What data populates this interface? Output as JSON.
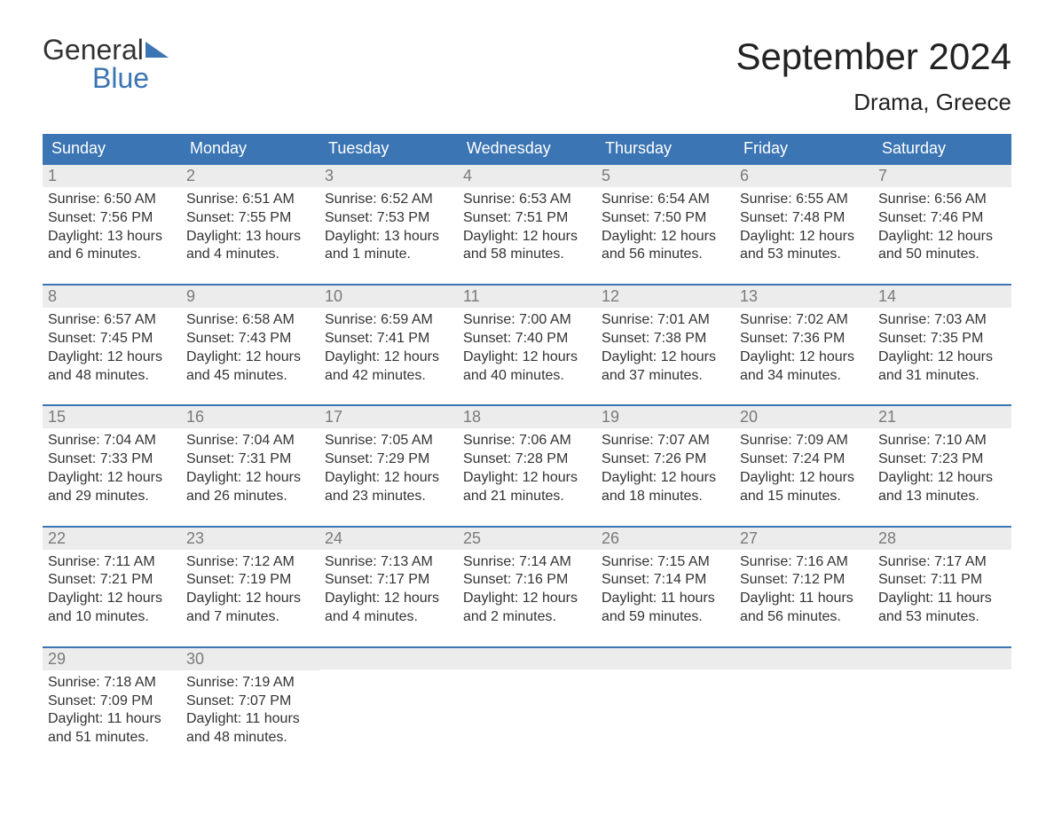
{
  "brand": {
    "line1": "General",
    "line2": "Blue"
  },
  "title": "September 2024",
  "location": "Drama, Greece",
  "colors": {
    "header_bg": "#3b75b3",
    "header_text": "#ffffff",
    "daynum_bg": "#ececec",
    "daynum_text": "#7a7a7a",
    "body_text": "#333333",
    "week_border": "#3b75b3",
    "brand_blue": "#3b75b3",
    "page_bg": "#ffffff"
  },
  "type": "calendar-table",
  "week_headers": [
    "Sunday",
    "Monday",
    "Tuesday",
    "Wednesday",
    "Thursday",
    "Friday",
    "Saturday"
  ],
  "days": [
    {
      "n": "1",
      "sunrise": "6:50 AM",
      "sunset": "7:56 PM",
      "daylight": "13 hours and 6 minutes."
    },
    {
      "n": "2",
      "sunrise": "6:51 AM",
      "sunset": "7:55 PM",
      "daylight": "13 hours and 4 minutes."
    },
    {
      "n": "3",
      "sunrise": "6:52 AM",
      "sunset": "7:53 PM",
      "daylight": "13 hours and 1 minute."
    },
    {
      "n": "4",
      "sunrise": "6:53 AM",
      "sunset": "7:51 PM",
      "daylight": "12 hours and 58 minutes."
    },
    {
      "n": "5",
      "sunrise": "6:54 AM",
      "sunset": "7:50 PM",
      "daylight": "12 hours and 56 minutes."
    },
    {
      "n": "6",
      "sunrise": "6:55 AM",
      "sunset": "7:48 PM",
      "daylight": "12 hours and 53 minutes."
    },
    {
      "n": "7",
      "sunrise": "6:56 AM",
      "sunset": "7:46 PM",
      "daylight": "12 hours and 50 minutes."
    },
    {
      "n": "8",
      "sunrise": "6:57 AM",
      "sunset": "7:45 PM",
      "daylight": "12 hours and 48 minutes."
    },
    {
      "n": "9",
      "sunrise": "6:58 AM",
      "sunset": "7:43 PM",
      "daylight": "12 hours and 45 minutes."
    },
    {
      "n": "10",
      "sunrise": "6:59 AM",
      "sunset": "7:41 PM",
      "daylight": "12 hours and 42 minutes."
    },
    {
      "n": "11",
      "sunrise": "7:00 AM",
      "sunset": "7:40 PM",
      "daylight": "12 hours and 40 minutes."
    },
    {
      "n": "12",
      "sunrise": "7:01 AM",
      "sunset": "7:38 PM",
      "daylight": "12 hours and 37 minutes."
    },
    {
      "n": "13",
      "sunrise": "7:02 AM",
      "sunset": "7:36 PM",
      "daylight": "12 hours and 34 minutes."
    },
    {
      "n": "14",
      "sunrise": "7:03 AM",
      "sunset": "7:35 PM",
      "daylight": "12 hours and 31 minutes."
    },
    {
      "n": "15",
      "sunrise": "7:04 AM",
      "sunset": "7:33 PM",
      "daylight": "12 hours and 29 minutes."
    },
    {
      "n": "16",
      "sunrise": "7:04 AM",
      "sunset": "7:31 PM",
      "daylight": "12 hours and 26 minutes."
    },
    {
      "n": "17",
      "sunrise": "7:05 AM",
      "sunset": "7:29 PM",
      "daylight": "12 hours and 23 minutes."
    },
    {
      "n": "18",
      "sunrise": "7:06 AM",
      "sunset": "7:28 PM",
      "daylight": "12 hours and 21 minutes."
    },
    {
      "n": "19",
      "sunrise": "7:07 AM",
      "sunset": "7:26 PM",
      "daylight": "12 hours and 18 minutes."
    },
    {
      "n": "20",
      "sunrise": "7:09 AM",
      "sunset": "7:24 PM",
      "daylight": "12 hours and 15 minutes."
    },
    {
      "n": "21",
      "sunrise": "7:10 AM",
      "sunset": "7:23 PM",
      "daylight": "12 hours and 13 minutes."
    },
    {
      "n": "22",
      "sunrise": "7:11 AM",
      "sunset": "7:21 PM",
      "daylight": "12 hours and 10 minutes."
    },
    {
      "n": "23",
      "sunrise": "7:12 AM",
      "sunset": "7:19 PM",
      "daylight": "12 hours and 7 minutes."
    },
    {
      "n": "24",
      "sunrise": "7:13 AM",
      "sunset": "7:17 PM",
      "daylight": "12 hours and 4 minutes."
    },
    {
      "n": "25",
      "sunrise": "7:14 AM",
      "sunset": "7:16 PM",
      "daylight": "12 hours and 2 minutes."
    },
    {
      "n": "26",
      "sunrise": "7:15 AM",
      "sunset": "7:14 PM",
      "daylight": "11 hours and 59 minutes."
    },
    {
      "n": "27",
      "sunrise": "7:16 AM",
      "sunset": "7:12 PM",
      "daylight": "11 hours and 56 minutes."
    },
    {
      "n": "28",
      "sunrise": "7:17 AM",
      "sunset": "7:11 PM",
      "daylight": "11 hours and 53 minutes."
    },
    {
      "n": "29",
      "sunrise": "7:18 AM",
      "sunset": "7:09 PM",
      "daylight": "11 hours and 51 minutes."
    },
    {
      "n": "30",
      "sunrise": "7:19 AM",
      "sunset": "7:07 PM",
      "daylight": "11 hours and 48 minutes."
    }
  ],
  "labels": {
    "sunrise_prefix": "Sunrise: ",
    "sunset_prefix": "Sunset: ",
    "daylight_prefix": "Daylight: "
  },
  "layout": {
    "columns": 7,
    "start_weekday_index": 0,
    "trailing_empty": 5,
    "font_family": "Arial",
    "title_fontsize": 42,
    "location_fontsize": 26,
    "header_fontsize": 18,
    "body_fontsize": 16,
    "daynum_fontsize": 18
  }
}
